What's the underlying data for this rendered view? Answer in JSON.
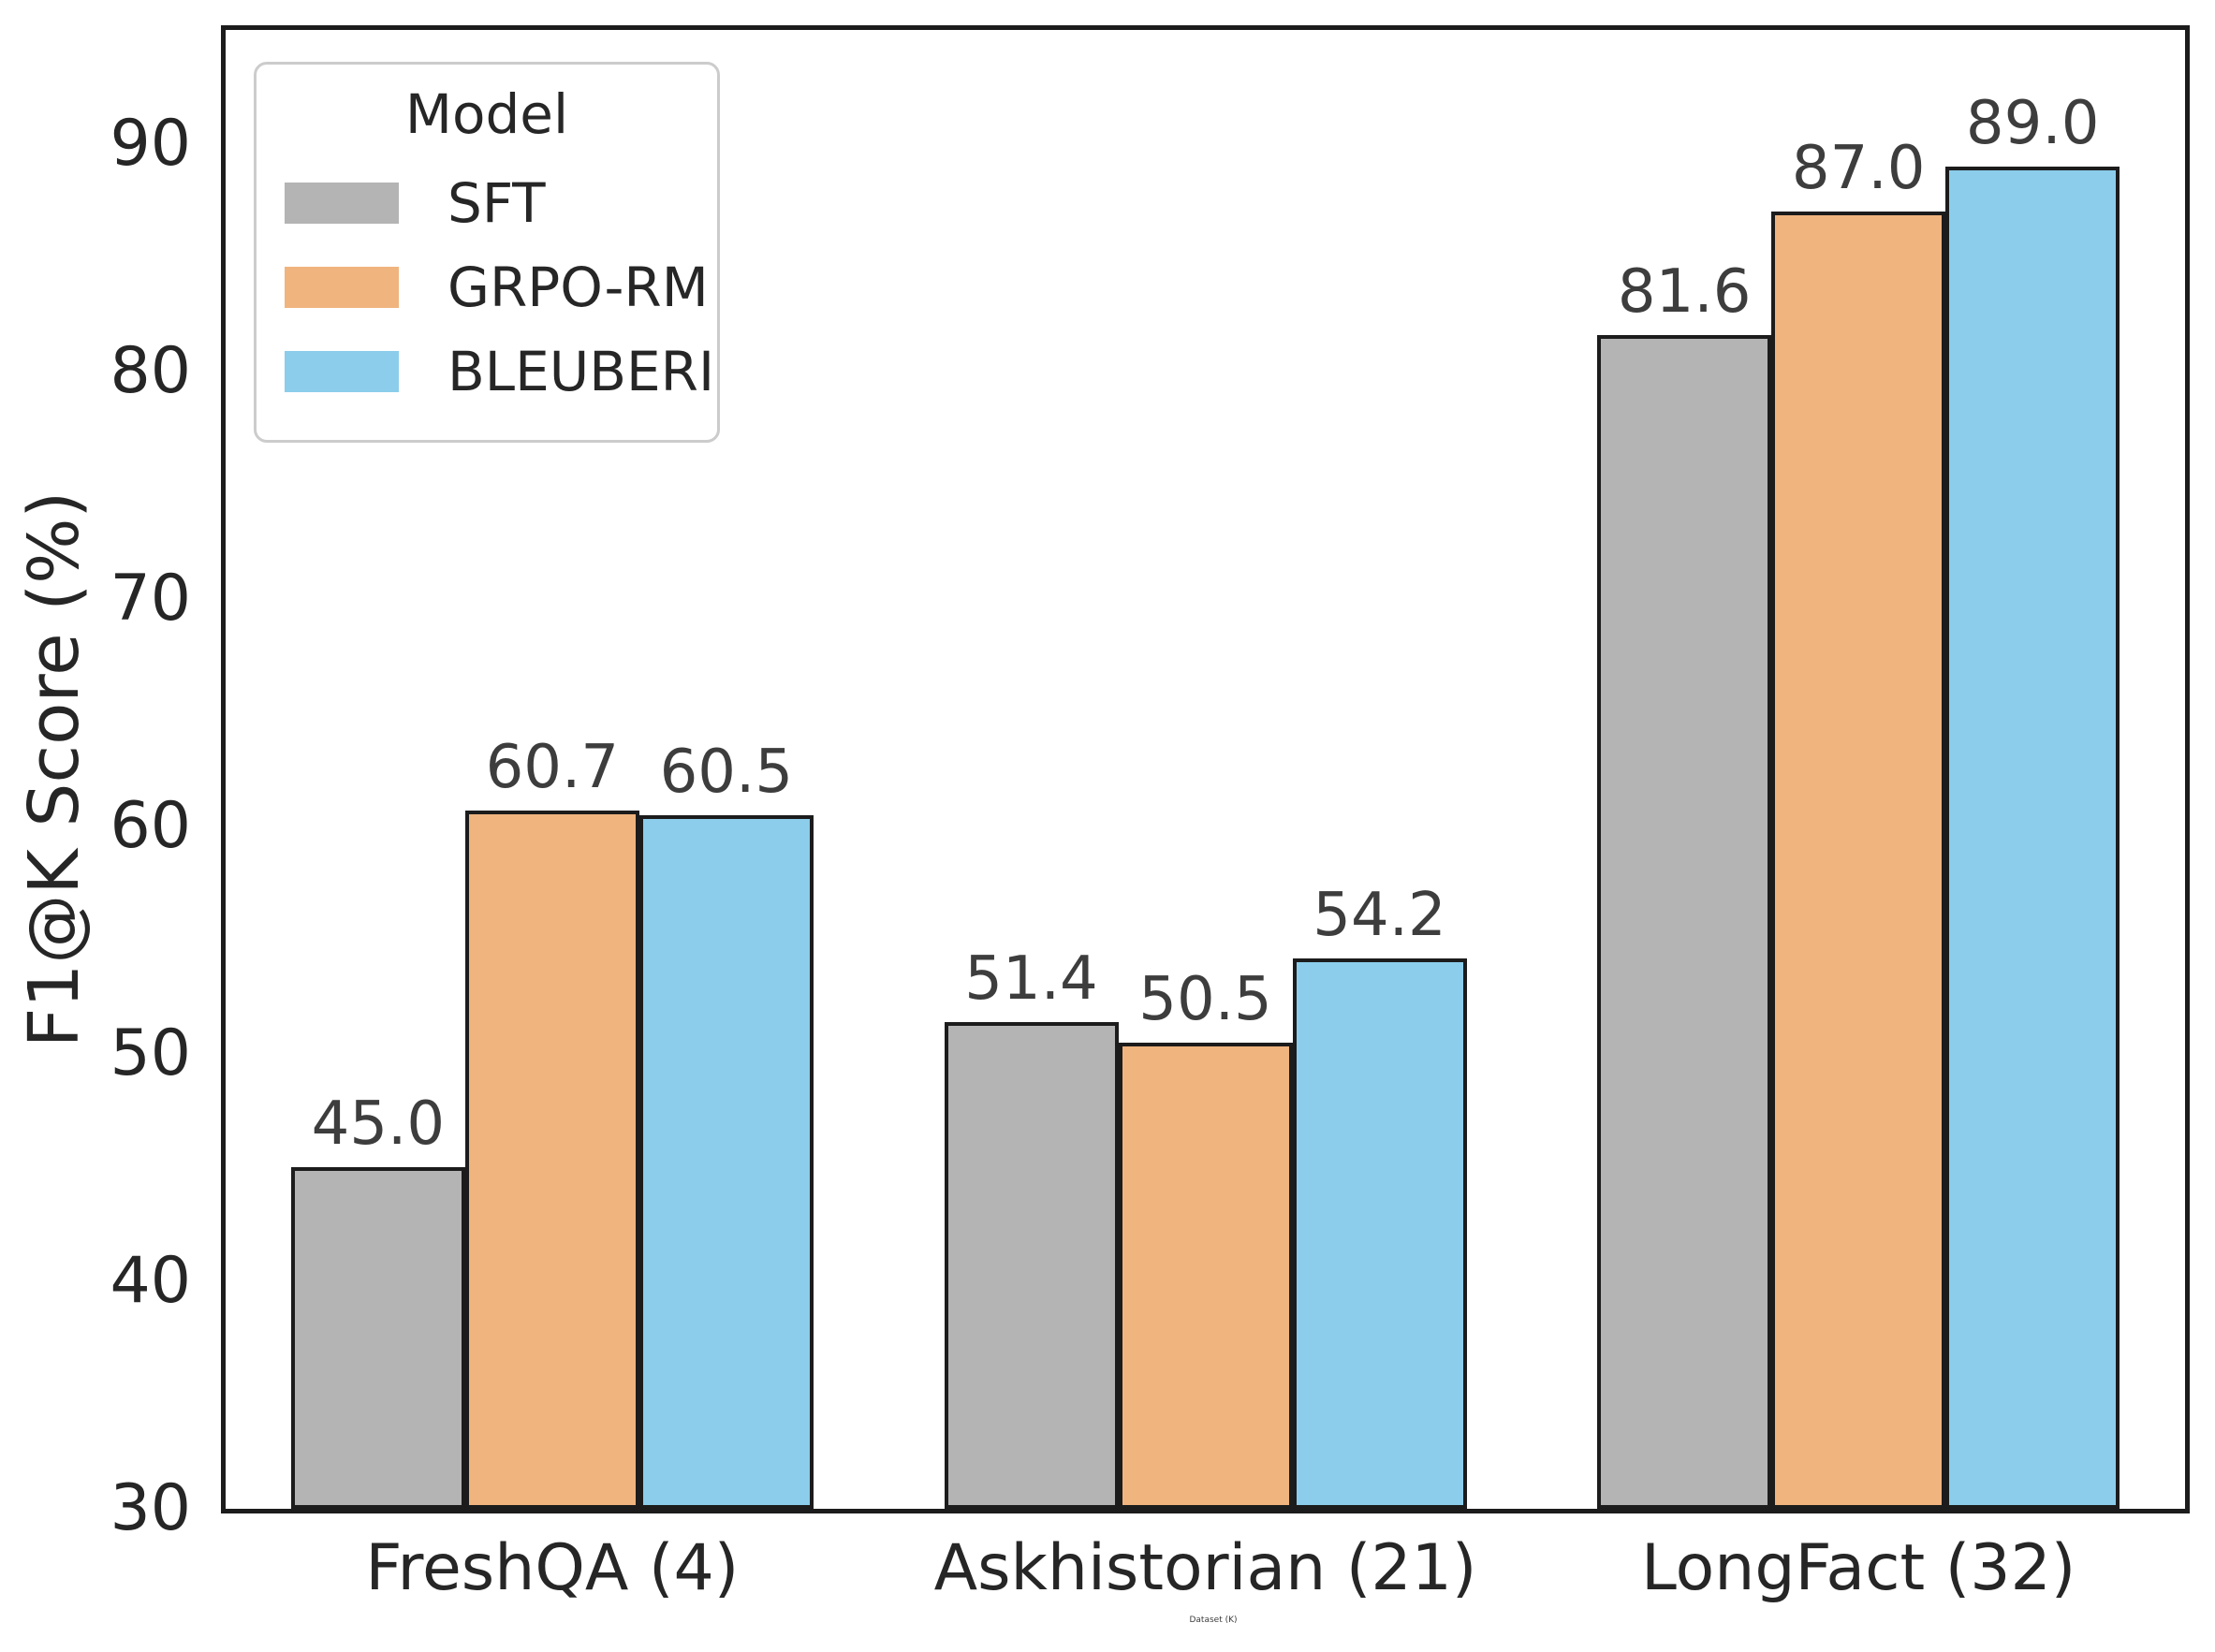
{
  "chart_data": {
    "type": "bar",
    "categories": [
      "FreshQA (4)",
      "Askhistorian (21)",
      "LongFact (32)"
    ],
    "series": [
      {
        "name": "SFT",
        "color": "#b4b4b4",
        "values": [
          45.0,
          51.4,
          81.6
        ]
      },
      {
        "name": "GRPO-RM",
        "color": "#f0b47f",
        "values": [
          60.7,
          50.5,
          87.0
        ]
      },
      {
        "name": "BLEUBERI",
        "color": "#8bcdeb",
        "values": [
          60.5,
          54.2,
          89.0
        ]
      }
    ],
    "title": "",
    "xlabel": "Dataset (K)",
    "ylabel": "F1@K Score (%)",
    "ylim": [
      30,
      95
    ],
    "yticks": [
      30,
      40,
      50,
      60,
      70,
      80,
      90
    ],
    "value_label_decimals": 1,
    "grid": false,
    "legend": {
      "title": "Model",
      "position": "upper left"
    },
    "colors": {
      "axis_line": "#1c1c1c",
      "bar_edge": "#1c1c1c",
      "tick_text": "#262626",
      "value_text": "#3d3d3d",
      "legend_border": "#cccccc"
    }
  }
}
